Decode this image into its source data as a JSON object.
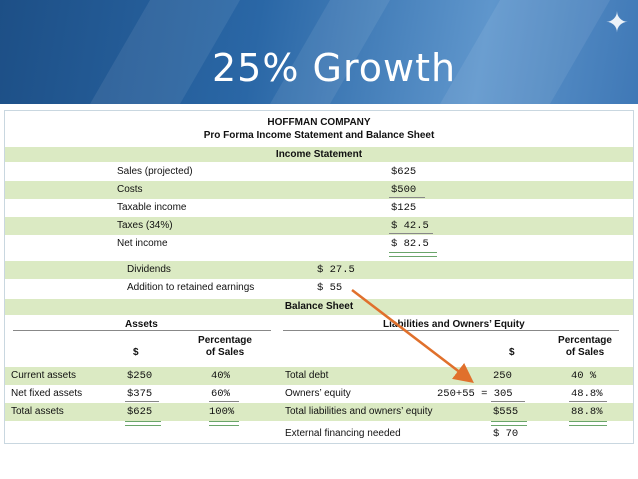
{
  "slide": {
    "title": "25% Growth"
  },
  "company": {
    "name": "HOFFMAN COMPANY",
    "subtitle": "Pro Forma Income Statement and Balance Sheet"
  },
  "income_statement": {
    "heading": "Income Statement",
    "rows": [
      {
        "label": "Sales (projected)",
        "value": "$625"
      },
      {
        "label": "Costs",
        "value": "$500"
      },
      {
        "label": "Taxable income",
        "value": "$125"
      },
      {
        "label": "Taxes (34%)",
        "value": "$ 42.5"
      },
      {
        "label": "Net income",
        "value": "$ 82.5"
      }
    ],
    "sub_rows": [
      {
        "label": "Dividends",
        "value": "$ 27.5"
      },
      {
        "label": "Addition to retained earnings",
        "value": "$ 55"
      }
    ]
  },
  "balance_sheet": {
    "heading": "Balance Sheet",
    "assets_heading": "Assets",
    "liab_heading": "Liabilities and Owners’ Equity",
    "col_dollar": "$",
    "col_pct": "Percentage of Sales",
    "col_pct_l1": "Percentage",
    "col_pct_l2": "of Sales",
    "assets": [
      {
        "label": "Current assets",
        "value": "$250",
        "pct": "40%"
      },
      {
        "label": "Net fixed assets",
        "value": "$375",
        "pct": "60%"
      },
      {
        "label": "Total assets",
        "value": "$625",
        "pct": "100%"
      }
    ],
    "liabilities": [
      {
        "label": "Total debt",
        "value": "250",
        "pct": "40  %"
      },
      {
        "label": "Owners’ equity",
        "value": "250+55 = 305",
        "pct": "48.8%"
      },
      {
        "label": "Total liabilities and owners’ equity",
        "value": "$555",
        "pct": "88.8%"
      }
    ],
    "efn": {
      "label": "External financing needed",
      "value": "$ 70"
    }
  },
  "colors": {
    "banner": "#2a67a6",
    "green_band": "#dbeac3",
    "arrow": "#e0702c"
  }
}
